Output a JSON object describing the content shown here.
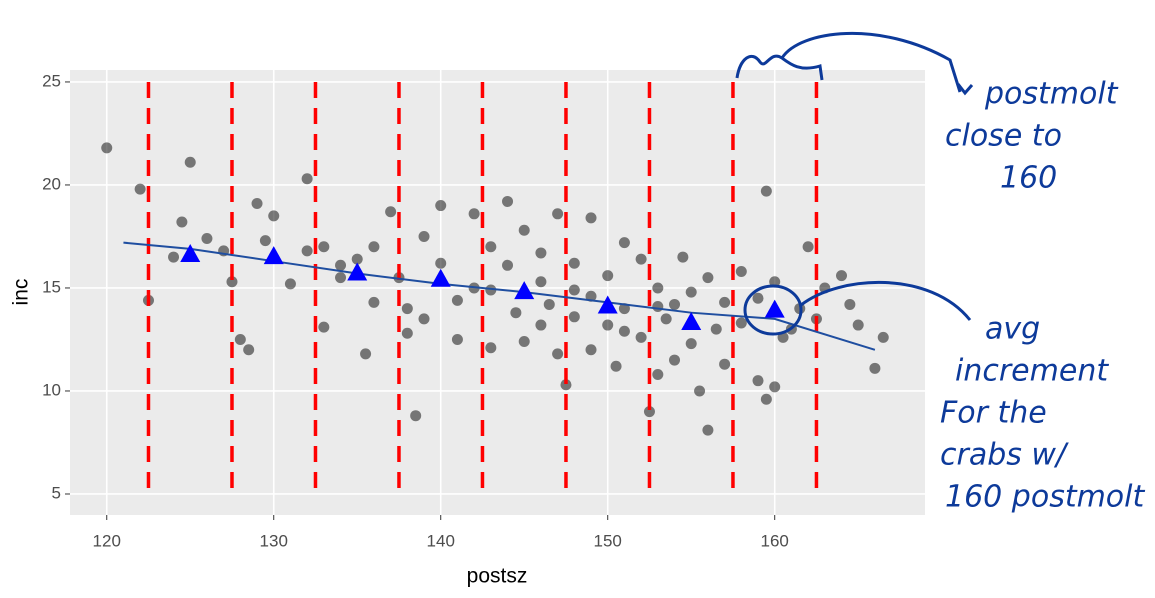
{
  "chart_data": {
    "type": "scatter",
    "x_label": "postsz",
    "y_label": "inc",
    "xlim": [
      117.8,
      169.0
    ],
    "ylim": [
      3.98,
      25.58
    ],
    "xticks": [
      120,
      130,
      140,
      150,
      160
    ],
    "yticks": [
      5,
      10,
      15,
      20,
      25
    ],
    "grid": true,
    "color": "#000000",
    "x": [
      120,
      122,
      122.5,
      124,
      124.5,
      125,
      126,
      127,
      127.5,
      128,
      128.5,
      129,
      129.5,
      130,
      131,
      132,
      132,
      133,
      133,
      134,
      135,
      135.5,
      136,
      136,
      137,
      137.5,
      138,
      138.5,
      139,
      139,
      140,
      140,
      141,
      141,
      142,
      142,
      143,
      143,
      144,
      144,
      144.5,
      145,
      145,
      146,
      146,
      146.5,
      147,
      147,
      147.5,
      148,
      148,
      149,
      149,
      149,
      150,
      150,
      150.5,
      151,
      151,
      152,
      152,
      152.5,
      153,
      153,
      153.5,
      154,
      154,
      154.5,
      155,
      155,
      155.5,
      156,
      156,
      156.5,
      157,
      157,
      158,
      158,
      159,
      159,
      159.5,
      159.5,
      160,
      160,
      160.5,
      161,
      161.5,
      162,
      162.5,
      163,
      164,
      164.5,
      165,
      166,
      166.5,
      138,
      134,
      143,
      148,
      151,
      146,
      153
    ],
    "values": [
      21.8,
      19.8,
      14.4,
      16.5,
      18.2,
      21.1,
      17.4,
      16.8,
      15.3,
      12.5,
      12.0,
      19.1,
      17.3,
      18.5,
      15.2,
      16.8,
      20.3,
      17.0,
      13.1,
      15.5,
      16.4,
      11.8,
      17.0,
      14.3,
      18.7,
      15.5,
      12.8,
      8.8,
      17.5,
      13.5,
      19.0,
      16.2,
      14.4,
      12.5,
      18.6,
      15.0,
      17.0,
      12.1,
      19.2,
      16.1,
      13.8,
      17.8,
      12.4,
      15.3,
      13.2,
      14.2,
      18.6,
      11.8,
      10.3,
      16.2,
      13.6,
      18.4,
      14.6,
      12.0,
      15.6,
      13.2,
      11.2,
      17.2,
      14.0,
      16.4,
      12.6,
      9.0,
      15.0,
      10.8,
      13.5,
      14.2,
      11.5,
      16.5,
      14.8,
      12.3,
      10.0,
      15.5,
      8.1,
      13.0,
      14.3,
      11.3,
      15.8,
      13.3,
      14.5,
      10.5,
      19.7,
      9.6,
      15.3,
      10.2,
      12.6,
      13.0,
      14.0,
      17.0,
      13.5,
      15.0,
      15.6,
      14.2,
      13.2,
      11.1,
      12.6,
      14.0,
      16.1,
      14.9,
      14.9,
      12.9,
      16.7,
      14.1
    ],
    "reference_lines": {
      "color": "#ff0000",
      "x": [
        122.5,
        127.5,
        132.5,
        137.5,
        142.5,
        147.5,
        152.5,
        157.5,
        162.5
      ]
    },
    "means": {
      "color": "#0000ff",
      "x": [
        125,
        130,
        135,
        140,
        145,
        150,
        155,
        160
      ],
      "values": [
        16.6,
        16.5,
        15.7,
        15.4,
        14.8,
        14.1,
        13.3,
        13.9
      ]
    },
    "smooth": {
      "color": "#1f4ea0",
      "x": [
        121,
        125,
        130,
        135,
        140,
        145,
        150,
        155,
        160,
        166
      ],
      "values": [
        17.2,
        16.9,
        16.3,
        15.7,
        15.2,
        14.8,
        14.3,
        13.8,
        13.5,
        12.0
      ]
    },
    "annotations": [
      {
        "lines": [
          "postmolt",
          "close to",
          "160"
        ]
      },
      {
        "lines": [
          "avg",
          "increment",
          "For the",
          "crabs w/",
          "160 postmolt"
        ]
      }
    ]
  }
}
